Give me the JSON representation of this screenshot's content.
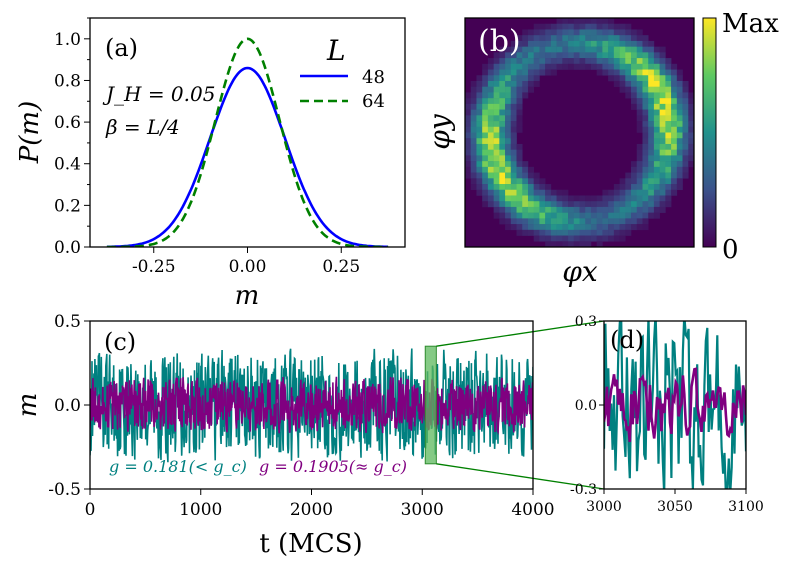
{
  "figure": {
    "colors": {
      "blue": "#0000ff",
      "green": "#008000",
      "teal": "#008080",
      "purple": "#800080",
      "box": "#5cb85c"
    }
  },
  "chart_data": [
    {
      "panel": "a",
      "type": "line",
      "panel_label": "(a)",
      "xlabel": "m",
      "ylabel": "P(m)",
      "xlim": [
        -0.42,
        0.42
      ],
      "ylim": [
        0.0,
        1.1
      ],
      "xticks": [
        "-0.25",
        "0.00",
        "0.25"
      ],
      "xtick_values": [
        -0.25,
        0.0,
        0.25
      ],
      "yticks": [
        "0.0",
        "0.2",
        "0.4",
        "0.6",
        "0.8",
        "1.0"
      ],
      "ytick_values": [
        0.0,
        0.2,
        0.4,
        0.6,
        0.8,
        1.0
      ],
      "annotations": [
        "J_H = 0.05",
        "β = L/4"
      ],
      "legend_title": "L",
      "series": [
        {
          "name": "48",
          "style": "solid",
          "color": "#0000ff",
          "peak": 0.86,
          "sigma": 0.1
        },
        {
          "name": "64",
          "style": "dashed",
          "color": "#008000",
          "peak": 1.0,
          "sigma": 0.086
        }
      ]
    },
    {
      "panel": "b",
      "type": "heatmap",
      "panel_label": "(b)",
      "xlabel": "φx",
      "ylabel": "φy",
      "colorbar_max": "Max",
      "colorbar_min": "0",
      "description_values": {
        "ring_radius": 0.78,
        "ring_width": 0.11
      }
    },
    {
      "panel": "c",
      "type": "line",
      "panel_label": "(c)",
      "xlabel": "t (MCS)",
      "ylabel": "m",
      "xlim": [
        0,
        4000
      ],
      "ylim": [
        -0.5,
        0.5
      ],
      "xticks": [
        "0",
        "1000",
        "2000",
        "3000",
        "4000"
      ],
      "xtick_values": [
        0,
        1000,
        2000,
        3000,
        4000
      ],
      "yticks": [
        "0.5",
        "0.0",
        "-0.5"
      ],
      "ytick_values": [
        0.5,
        0.0,
        -0.5
      ],
      "zoom_window": [
        3000,
        3100
      ],
      "series": [
        {
          "name": "g = 0.181(< g_c)",
          "color": "#008080",
          "amplitude": 0.34
        },
        {
          "name": "g = 0.1905(≈ g_c)",
          "color": "#800080",
          "amplitude": 0.17
        }
      ]
    },
    {
      "panel": "d",
      "type": "line",
      "panel_label": "(d)",
      "xlim": [
        3000,
        3100
      ],
      "ylim": [
        -0.3,
        0.3
      ],
      "xticks": [
        "3000",
        "3050",
        "3100"
      ],
      "xtick_values": [
        3000,
        3050,
        3100
      ],
      "yticks": [
        "0.3",
        "0.0",
        "-0.3"
      ],
      "ytick_values": [
        0.3,
        0.0,
        -0.3
      ]
    }
  ]
}
